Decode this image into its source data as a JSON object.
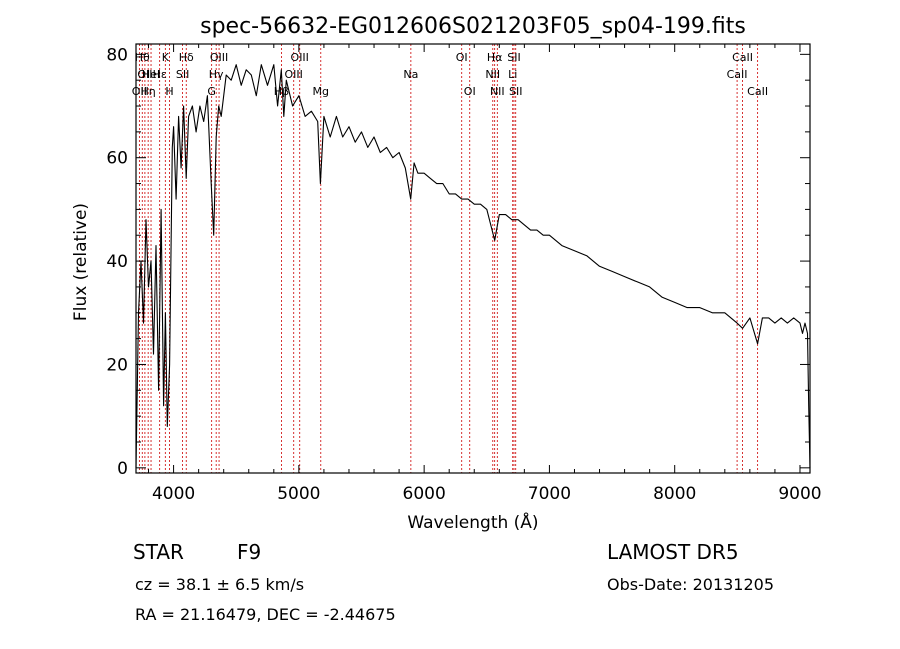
{
  "chart_data": {
    "type": "line",
    "title": "spec-56632-EG012606S021203F05_sp04-199.fits",
    "xlabel": "Wavelength (Å)",
    "ylabel": "Flux (relative)",
    "xlim": [
      3700,
      9080
    ],
    "ylim": [
      -1,
      82
    ],
    "x_ticks": [
      4000,
      5000,
      6000,
      7000,
      8000,
      9000
    ],
    "y_ticks": [
      0,
      20,
      40,
      60,
      80
    ],
    "grid": false,
    "series": [
      {
        "color": "#000000",
        "x": [
          3700,
          3720,
          3740,
          3760,
          3780,
          3800,
          3820,
          3840,
          3860,
          3880,
          3900,
          3920,
          3935,
          3950,
          3968,
          3990,
          4000,
          4020,
          4040,
          4060,
          4080,
          4101,
          4120,
          4150,
          4180,
          4210,
          4240,
          4270,
          4300,
          4320,
          4340,
          4360,
          4380,
          4420,
          4460,
          4500,
          4540,
          4580,
          4620,
          4660,
          4700,
          4750,
          4800,
          4830,
          4860,
          4880,
          4900,
          4950,
          5000,
          5050,
          5100,
          5150,
          5172,
          5200,
          5250,
          5300,
          5350,
          5400,
          5450,
          5500,
          5550,
          5600,
          5650,
          5700,
          5750,
          5800,
          5850,
          5893,
          5920,
          5950,
          6000,
          6050,
          6100,
          6150,
          6200,
          6250,
          6300,
          6350,
          6400,
          6450,
          6500,
          6563,
          6600,
          6650,
          6700,
          6750,
          6800,
          6850,
          6900,
          6950,
          7000,
          7100,
          7200,
          7300,
          7400,
          7500,
          7600,
          7700,
          7800,
          7900,
          8000,
          8100,
          8200,
          8300,
          8400,
          8498,
          8542,
          8600,
          8662,
          8700,
          8750,
          8800,
          8850,
          8900,
          8950,
          9000,
          9020,
          9040,
          9060,
          9070,
          9080
        ],
        "y": [
          0,
          30,
          40,
          28,
          48,
          35,
          40,
          22,
          43,
          15,
          50,
          12,
          30,
          8,
          20,
          62,
          66,
          52,
          68,
          58,
          70,
          56,
          68,
          70,
          65,
          70,
          67,
          72,
          55,
          45,
          64,
          70,
          68,
          76,
          75,
          78,
          74,
          77,
          76,
          72,
          78,
          74,
          78,
          70,
          77,
          68,
          75,
          70,
          72,
          68,
          69,
          67,
          55,
          68,
          64,
          68,
          64,
          66,
          63,
          65,
          62,
          64,
          61,
          62,
          60,
          61,
          58,
          52,
          59,
          57,
          57,
          56,
          55,
          55,
          53,
          53,
          52,
          52,
          51,
          51,
          50,
          44,
          49,
          49,
          48,
          48,
          47,
          46,
          46,
          45,
          45,
          43,
          42,
          41,
          39,
          38,
          37,
          36,
          35,
          33,
          32,
          31,
          31,
          30,
          30,
          28,
          27,
          29,
          24,
          29,
          29,
          28,
          29,
          28,
          29,
          28,
          26,
          28,
          26,
          12,
          0
        ]
      }
    ],
    "line_markers": [
      {
        "wavelength": 3727,
        "label": "OII",
        "row": 3
      },
      {
        "wavelength": 3750,
        "label": "Hθ",
        "row": 1
      },
      {
        "wavelength": 3771,
        "label": "OII",
        "row": 2
      },
      {
        "wavelength": 3797,
        "label": "Hη",
        "row": 3
      },
      {
        "wavelength": 3820,
        "label": "HeI",
        "row": 2
      },
      {
        "wavelength": 3889,
        "label": "Hε",
        "row": 2
      },
      {
        "wavelength": 3934,
        "label": "K",
        "row": 1
      },
      {
        "wavelength": 3968,
        "label": "H",
        "row": 3
      },
      {
        "wavelength": 4072,
        "label": "SII",
        "row": 2
      },
      {
        "wavelength": 4101,
        "label": "Hδ",
        "row": 1
      },
      {
        "wavelength": 4304,
        "label": "G",
        "row": 3
      },
      {
        "wavelength": 4340,
        "label": "Hγ",
        "row": 2
      },
      {
        "wavelength": 4363,
        "label": "OIII",
        "row": 1
      },
      {
        "wavelength": 4861,
        "label": "Hβ",
        "row": 3
      },
      {
        "wavelength": 4959,
        "label": "OIII",
        "row": 2
      },
      {
        "wavelength": 5007,
        "label": "OIII",
        "row": 1
      },
      {
        "wavelength": 5175,
        "label": "Mg",
        "row": 3
      },
      {
        "wavelength": 5894,
        "label": "Na",
        "row": 2
      },
      {
        "wavelength": 6300,
        "label": "OI",
        "row": 1
      },
      {
        "wavelength": 6364,
        "label": "OI",
        "row": 3
      },
      {
        "wavelength": 6548,
        "label": "NII",
        "row": 2
      },
      {
        "wavelength": 6563,
        "label": "Hα",
        "row": 1
      },
      {
        "wavelength": 6584,
        "label": "NII",
        "row": 3
      },
      {
        "wavelength": 6707,
        "label": "Li",
        "row": 2
      },
      {
        "wavelength": 6717,
        "label": "SII",
        "row": 1
      },
      {
        "wavelength": 6731,
        "label": "SII",
        "row": 3
      },
      {
        "wavelength": 8498,
        "label": "CaII",
        "row": 2
      },
      {
        "wavelength": 8542,
        "label": "CaII",
        "row": 1
      },
      {
        "wavelength": 8662,
        "label": "CaII",
        "row": 3
      }
    ],
    "marker_color": "#cc0000"
  },
  "info": {
    "object_class": "STAR",
    "subclass": "F9",
    "survey": "LAMOST DR5",
    "redshift": "cz = 38.1 ± 6.5 km/s",
    "obs_date": "Obs-Date: 20131205",
    "coords": "RA =  21.16479, DEC =  -2.44675"
  }
}
